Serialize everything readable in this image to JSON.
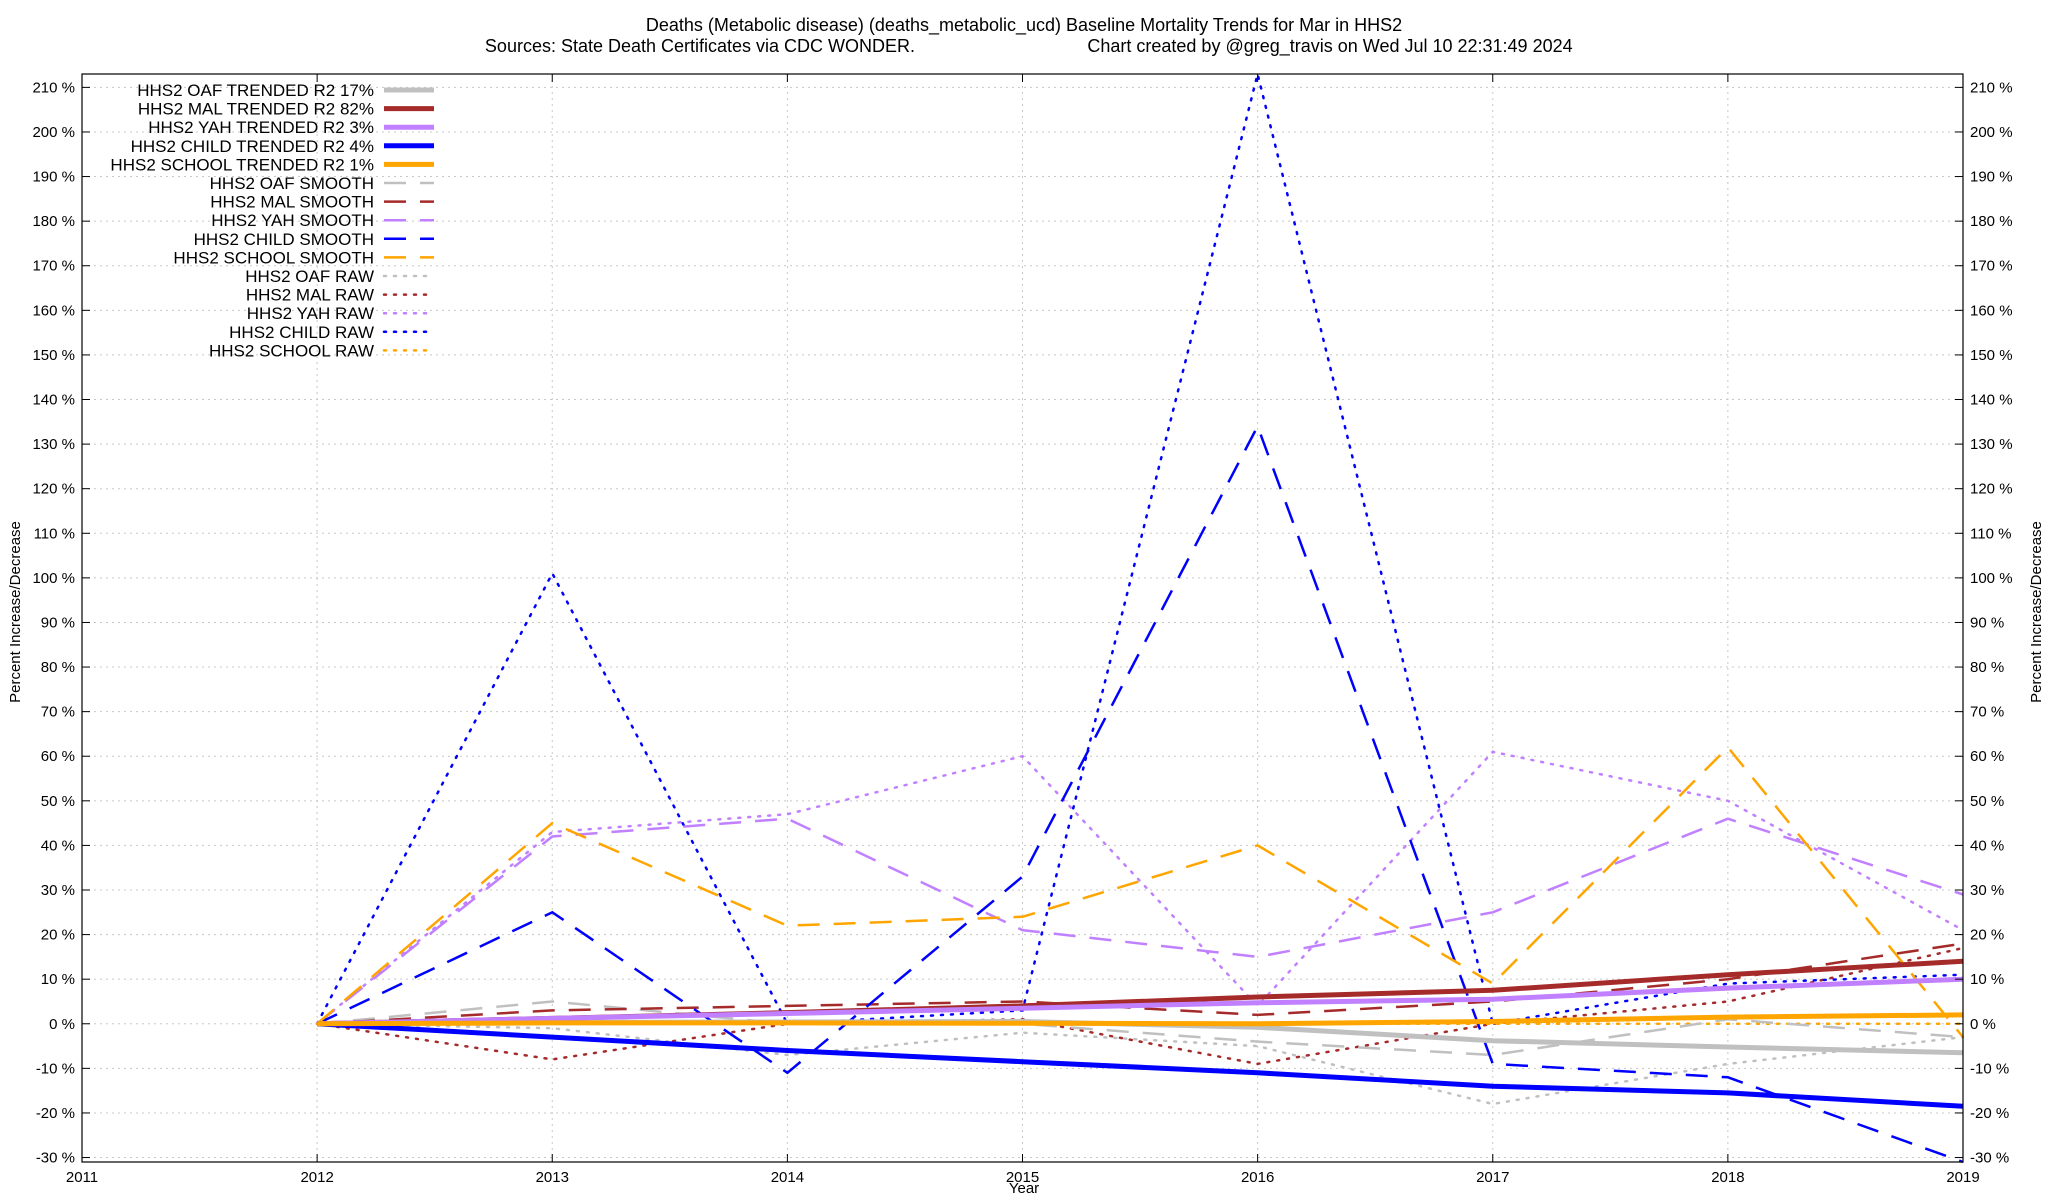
{
  "chart_data": {
    "type": "line",
    "title_line1": "Deaths (Metabolic disease) (deaths_metabolic_ucd)  Baseline Mortality Trends for Mar in HHS2",
    "title_line2_left": "Sources: State Death Certificates via CDC WONDER.",
    "title_line2_right": "Chart created by @greg_travis on Wed Jul 10 22:31:49 2024",
    "xlabel": "Year",
    "ylabel": "Percent Increase/Decrease",
    "ylabel_right": "Percent Increase/Decrease",
    "xlim": [
      2011,
      2019
    ],
    "ylim": [
      -31,
      213
    ],
    "x_ticks": [
      2011,
      2012,
      2013,
      2014,
      2015,
      2016,
      2017,
      2018,
      2019
    ],
    "y_ticks": [
      -30,
      -20,
      -10,
      0,
      10,
      20,
      30,
      40,
      50,
      60,
      70,
      80,
      90,
      100,
      110,
      120,
      130,
      140,
      150,
      160,
      170,
      180,
      190,
      200,
      210
    ],
    "y_tick_suffix": " %",
    "grid": true,
    "legend_position": "top-left",
    "series": [
      {
        "name": "HHS2 OAF TRENDED R2  17%",
        "color": "#c0c0c0",
        "style": "solid",
        "x": [
          2012,
          2013,
          2014,
          2015,
          2016,
          2017,
          2018,
          2019
        ],
        "y": [
          0,
          0.3,
          0.4,
          0.5,
          -0.8,
          -3.8,
          -5.2,
          -6.5
        ]
      },
      {
        "name": "HHS2 MAL TRENDED R2  82%",
        "color": "#a52a2a",
        "style": "solid",
        "x": [
          2012,
          2013,
          2014,
          2015,
          2016,
          2017,
          2018,
          2019
        ],
        "y": [
          0,
          1.2,
          2.5,
          4.0,
          6.0,
          7.5,
          11.0,
          14.0
        ]
      },
      {
        "name": "HHS2 YAH TRENDED R2  3%",
        "color": "#c080ff",
        "style": "solid",
        "x": [
          2012,
          2013,
          2014,
          2015,
          2016,
          2017,
          2018,
          2019
        ],
        "y": [
          0,
          1.2,
          2.3,
          3.5,
          4.7,
          5.5,
          8.0,
          10.0
        ]
      },
      {
        "name": "HHS2 CHILD TRENDED R2  4%",
        "color": "#0000ff",
        "style": "solid",
        "x": [
          2012,
          2013,
          2014,
          2015,
          2016,
          2017,
          2018,
          2019
        ],
        "y": [
          0,
          -3.0,
          -6.0,
          -8.5,
          -11.0,
          -14.0,
          -15.5,
          -18.5
        ]
      },
      {
        "name": "HHS2 SCHOOL TRENDED R2  1%",
        "color": "#ffa500",
        "style": "solid",
        "x": [
          2012,
          2013,
          2014,
          2015,
          2016,
          2017,
          2018,
          2019
        ],
        "y": [
          0,
          0.2,
          0.2,
          0.1,
          0.0,
          0.5,
          1.5,
          2.0
        ]
      },
      {
        "name": "HHS2 OAF SMOOTH",
        "color": "#c0c0c0",
        "style": "dashed",
        "x": [
          2012,
          2013,
          2014,
          2015,
          2016,
          2017,
          2018,
          2019
        ],
        "y": [
          0,
          5,
          0,
          0,
          -4,
          -7,
          1,
          -3
        ]
      },
      {
        "name": "HHS2 MAL SMOOTH",
        "color": "#a52a2a",
        "style": "dashed",
        "x": [
          2012,
          2013,
          2014,
          2015,
          2016,
          2017,
          2018,
          2019
        ],
        "y": [
          0,
          3,
          4,
          5,
          2,
          5,
          10,
          18
        ]
      },
      {
        "name": "HHS2 YAH SMOOTH",
        "color": "#c080ff",
        "style": "dashed",
        "x": [
          2012,
          2013,
          2014,
          2015,
          2016,
          2017,
          2018,
          2019
        ],
        "y": [
          0,
          42,
          46,
          21,
          15,
          25,
          46,
          29
        ]
      },
      {
        "name": "HHS2 CHILD SMOOTH",
        "color": "#0000ff",
        "style": "dashed",
        "x": [
          2012,
          2013,
          2014,
          2015,
          2016,
          2017,
          2018,
          2019
        ],
        "y": [
          0,
          25,
          -11,
          33,
          134,
          -9,
          -12,
          -31
        ]
      },
      {
        "name": "HHS2 SCHOOL SMOOTH",
        "color": "#ffa500",
        "style": "dashed",
        "x": [
          2012,
          2013,
          2014,
          2015,
          2016,
          2017,
          2018,
          2019
        ],
        "y": [
          0,
          45,
          22,
          24,
          40,
          9,
          62,
          -3
        ]
      },
      {
        "name": "HHS2 OAF RAW",
        "color": "#c0c0c0",
        "style": "dotted",
        "x": [
          2012,
          2013,
          2014,
          2015,
          2016,
          2017,
          2018,
          2019
        ],
        "y": [
          0,
          -1,
          -7,
          -2,
          -5,
          -18,
          -9,
          -3
        ]
      },
      {
        "name": "HHS2 MAL RAW",
        "color": "#a52a2a",
        "style": "dotted",
        "x": [
          2012,
          2013,
          2014,
          2015,
          2016,
          2017,
          2018,
          2019
        ],
        "y": [
          0,
          -8,
          0,
          1,
          -9,
          0,
          5,
          17
        ]
      },
      {
        "name": "HHS2 YAH RAW",
        "color": "#c080ff",
        "style": "dotted",
        "x": [
          2012,
          2013,
          2014,
          2015,
          2016,
          2017,
          2018,
          2019
        ],
        "y": [
          0,
          43,
          47,
          60,
          4,
          61,
          50,
          21
        ]
      },
      {
        "name": "HHS2 CHILD RAW",
        "color": "#0000ff",
        "style": "dotted",
        "x": [
          2012,
          2013,
          2014,
          2015,
          2016,
          2017,
          2018,
          2019
        ],
        "y": [
          0,
          101,
          0,
          3,
          213,
          0,
          9,
          11
        ]
      },
      {
        "name": "HHS2 SCHOOL RAW",
        "color": "#ffa500",
        "style": "dotted",
        "x": [
          2012,
          2013,
          2014,
          2015,
          2016,
          2017,
          2018,
          2019
        ],
        "y": [
          0,
          0,
          0,
          0,
          0,
          0,
          0,
          0
        ]
      }
    ]
  }
}
